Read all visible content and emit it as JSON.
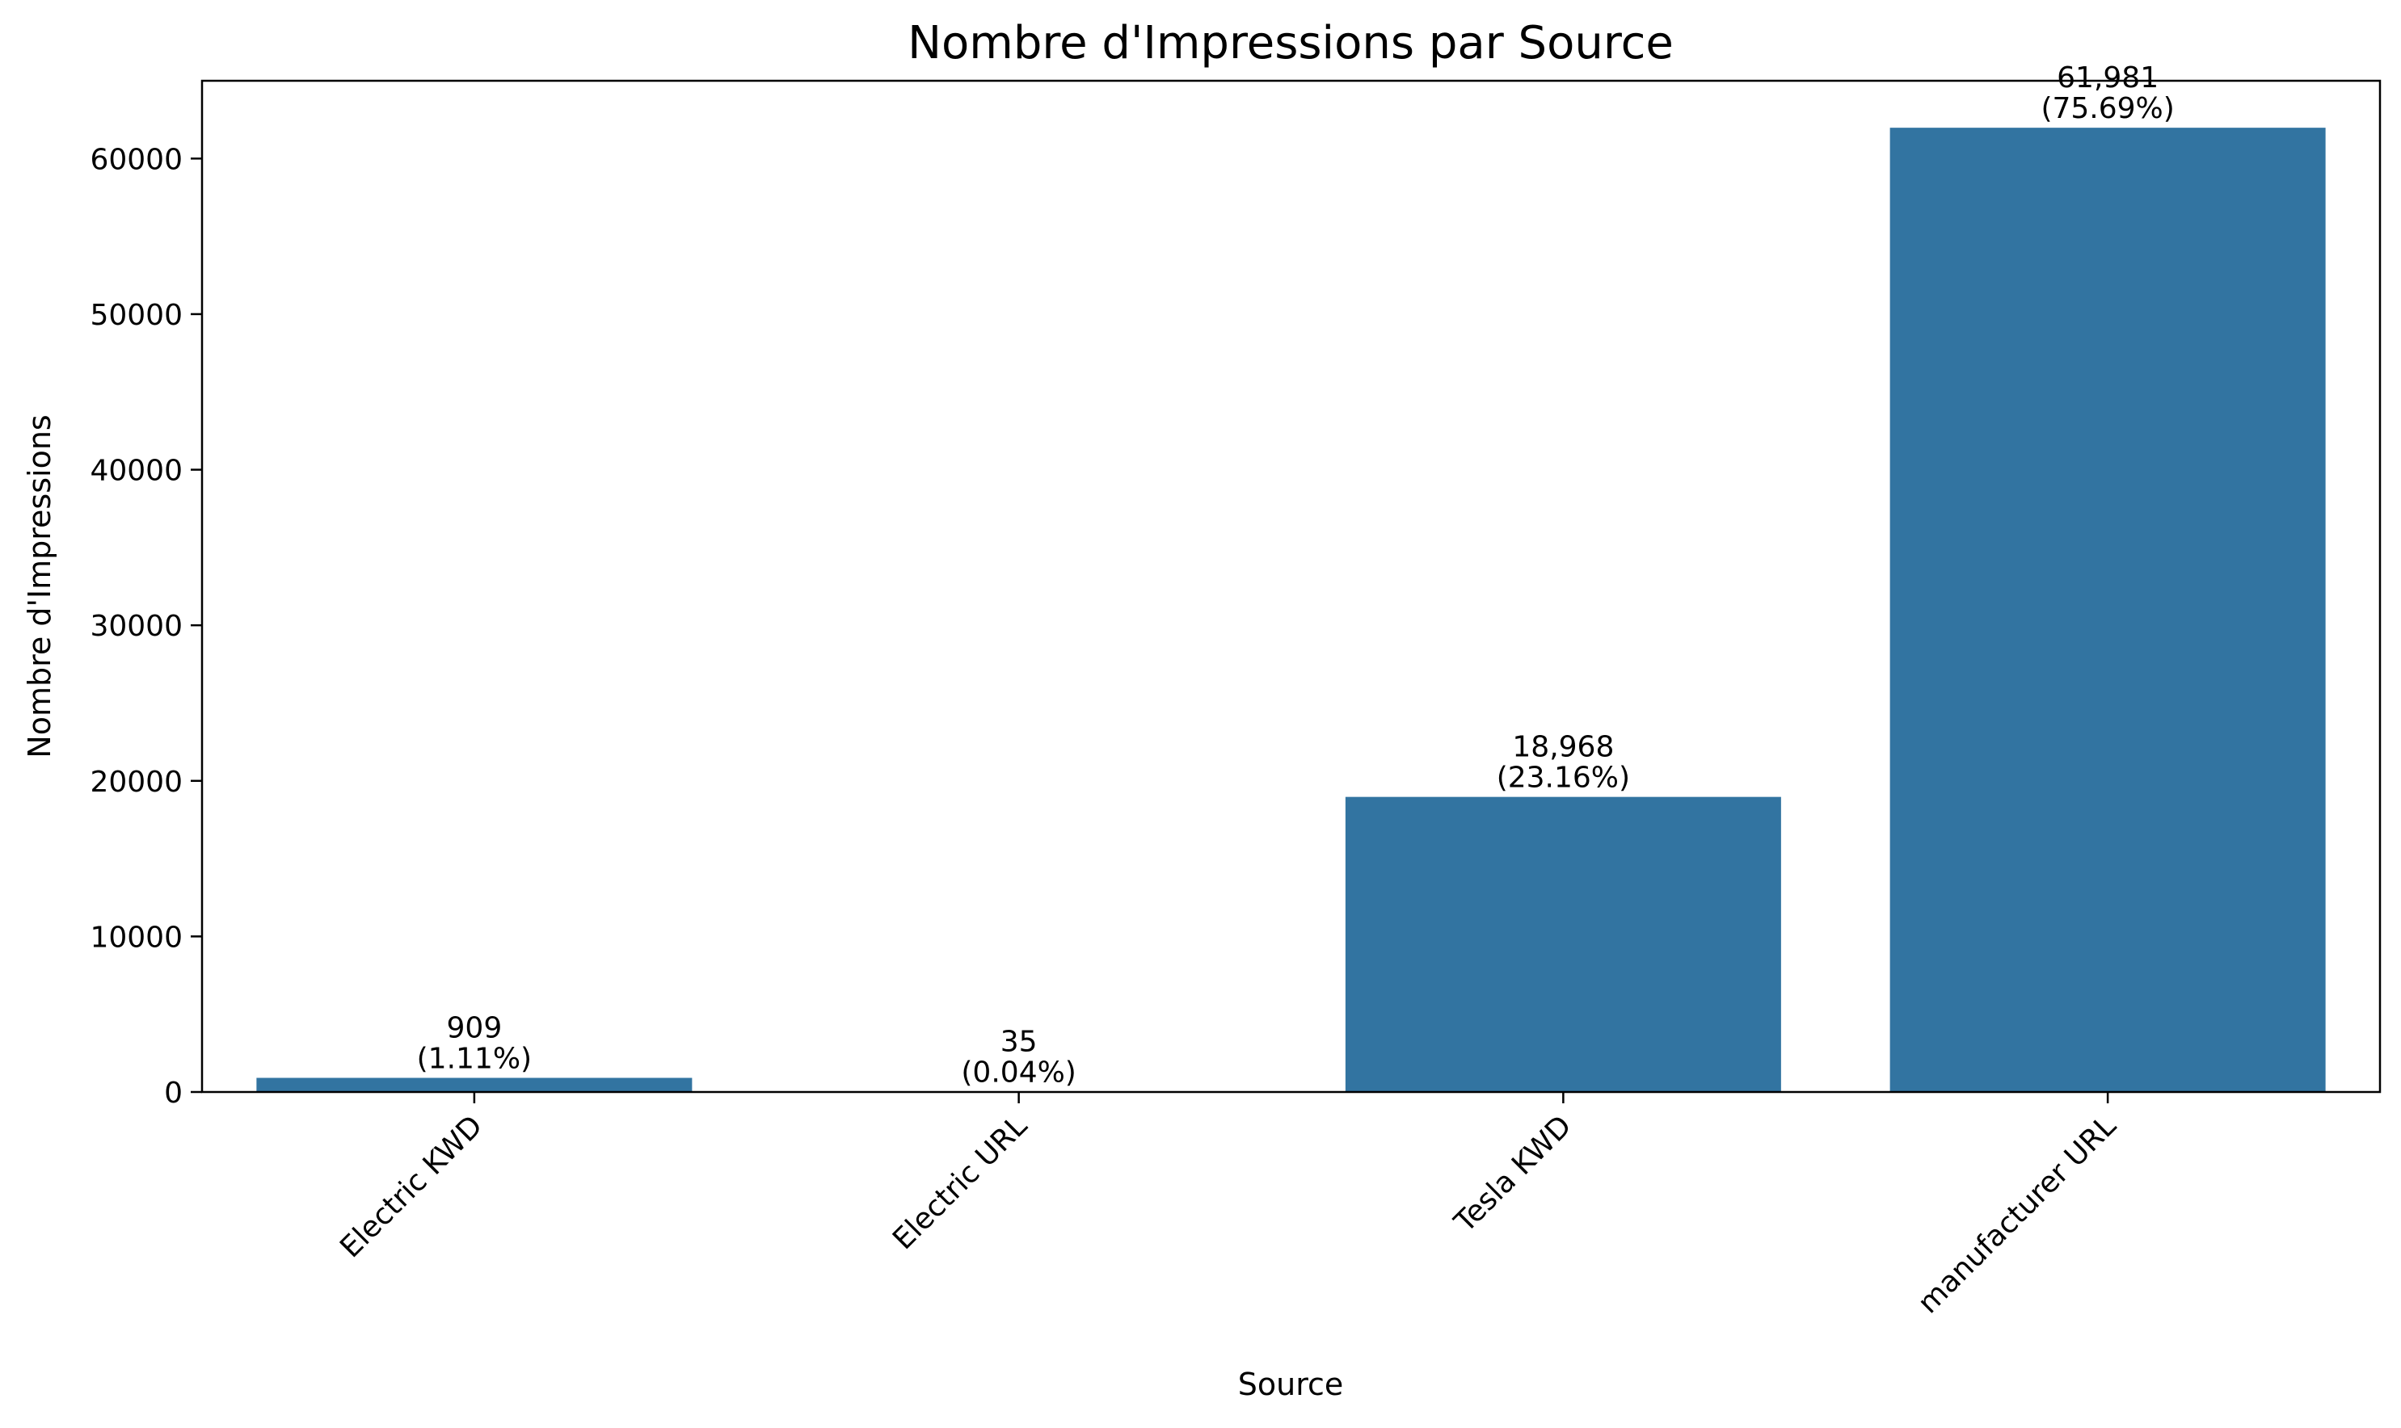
{
  "chart_data": {
    "type": "bar",
    "title": "Nombre d'Impressions par Source",
    "xlabel": "Source",
    "ylabel": "Nombre d'Impressions",
    "categories": [
      "Electric KWD",
      "Electric URL",
      "Tesla KWD",
      "manufacturer URL"
    ],
    "values": [
      909,
      35,
      18968,
      61981
    ],
    "value_labels": [
      "909",
      "35",
      "18,968",
      "61,981"
    ],
    "percent_labels": [
      "(1.11%)",
      "(0.04%)",
      "(23.16%)",
      "(75.69%)"
    ],
    "ylim": [
      0,
      65000
    ],
    "yticks": [
      0,
      10000,
      20000,
      30000,
      40000,
      50000,
      60000
    ],
    "ytick_labels": [
      "0",
      "10000",
      "20000",
      "30000",
      "40000",
      "50000",
      "60000"
    ],
    "bar_color": "#3274a1",
    "grid": false,
    "legend": "none"
  }
}
